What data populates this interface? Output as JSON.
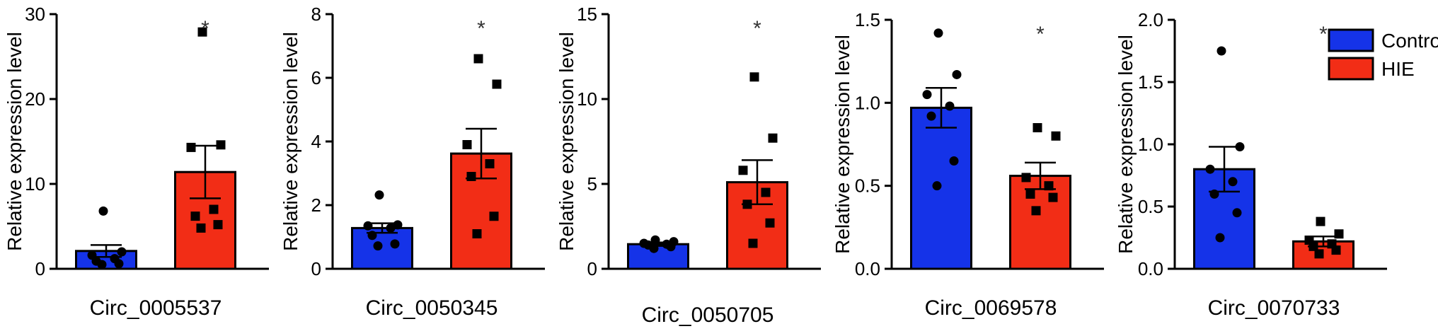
{
  "chart_data": [
    {
      "type": "bar",
      "title": "Circ_0005537",
      "ylabel": "Relative expression level",
      "ylim": [
        0,
        30
      ],
      "yticks": [
        0,
        10,
        20,
        30
      ],
      "ytick_labels": [
        "0",
        "10",
        "20",
        "30"
      ],
      "categories": [
        "Control",
        "HIE"
      ],
      "series": [
        {
          "name": "Control",
          "mean": 2.1,
          "sem": 0.7,
          "points": [
            6.8,
            2.0,
            1.6,
            1.2,
            0.9,
            0.6,
            0.5
          ]
        },
        {
          "name": "HIE",
          "mean": 11.4,
          "sem": 3.1,
          "points": [
            27.9,
            14.6,
            14.3,
            7.0,
            6.2,
            5.2,
            4.8
          ]
        }
      ],
      "significance": "*"
    },
    {
      "type": "bar",
      "title": "Circ_0050345",
      "ylabel": "Relative expression level",
      "ylim": [
        0,
        8
      ],
      "yticks": [
        0,
        2,
        4,
        6,
        8
      ],
      "ytick_labels": [
        "0",
        "2",
        "4",
        "6",
        "8"
      ],
      "categories": [
        "Control",
        "HIE"
      ],
      "series": [
        {
          "name": "Control",
          "mean": 1.28,
          "sem": 0.15,
          "points": [
            2.32,
            1.38,
            1.35,
            1.28,
            1.05,
            0.78,
            0.72
          ]
        },
        {
          "name": "HIE",
          "mean": 3.62,
          "sem": 0.78,
          "points": [
            6.6,
            5.8,
            3.9,
            3.3,
            2.9,
            1.65,
            1.1
          ]
        }
      ],
      "significance": "*"
    },
    {
      "type": "bar",
      "title": "Circ_0050705",
      "ylabel": "Relative expression level",
      "ylim": [
        0,
        15
      ],
      "yticks": [
        0,
        5,
        10,
        15
      ],
      "ytick_labels": [
        "0",
        "5",
        "10",
        "15"
      ],
      "categories": [
        "Control",
        "HIE"
      ],
      "series": [
        {
          "name": "Control",
          "mean": 1.45,
          "sem": 0.1,
          "points": [
            1.7,
            1.6,
            1.5,
            1.45,
            1.4,
            1.3,
            1.2
          ]
        },
        {
          "name": "HIE",
          "mean": 5.1,
          "sem": 1.3,
          "points": [
            11.3,
            7.7,
            5.8,
            4.5,
            3.8,
            2.7,
            1.5
          ]
        }
      ],
      "significance": "*"
    },
    {
      "type": "bar",
      "title": "Circ_0069578",
      "ylabel": "Relative expression level",
      "ylim": [
        0,
        1.5
      ],
      "yticks": [
        0,
        0.5,
        1.0,
        1.5
      ],
      "ytick_labels": [
        "0.0",
        "0.5",
        "1.0",
        "1.5"
      ],
      "categories": [
        "Control",
        "HIE"
      ],
      "series": [
        {
          "name": "Control",
          "mean": 0.97,
          "sem": 0.12,
          "points": [
            1.42,
            1.17,
            1.05,
            0.98,
            0.92,
            0.65,
            0.5
          ]
        },
        {
          "name": "HIE",
          "mean": 0.56,
          "sem": 0.08,
          "points": [
            0.85,
            0.8,
            0.55,
            0.5,
            0.45,
            0.43,
            0.35
          ]
        }
      ],
      "significance": "*"
    },
    {
      "type": "bar",
      "title": "Circ_0070733",
      "ylabel": "Relative expression level",
      "ylim": [
        0,
        2.0
      ],
      "yticks": [
        0,
        0.5,
        1.0,
        1.5,
        2.0
      ],
      "ytick_labels": [
        "0.0",
        "0.5",
        "1.0",
        "1.5",
        "2.0"
      ],
      "categories": [
        "Control",
        "HIE"
      ],
      "series": [
        {
          "name": "Control",
          "mean": 0.8,
          "sem": 0.18,
          "points": [
            1.75,
            0.98,
            0.8,
            0.7,
            0.6,
            0.45,
            0.25
          ]
        },
        {
          "name": "HIE",
          "mean": 0.22,
          "sem": 0.04,
          "points": [
            0.38,
            0.28,
            0.23,
            0.2,
            0.18,
            0.15,
            0.12
          ]
        }
      ],
      "significance": "*"
    }
  ],
  "legend": {
    "position": "top-right",
    "entries": [
      {
        "label": "Control",
        "color": "#1533e8"
      },
      {
        "label": "HIE",
        "color": "#f22d16"
      }
    ]
  },
  "colors": {
    "control": "#1533e8",
    "hie": "#f22d16",
    "axis": "#000000"
  }
}
